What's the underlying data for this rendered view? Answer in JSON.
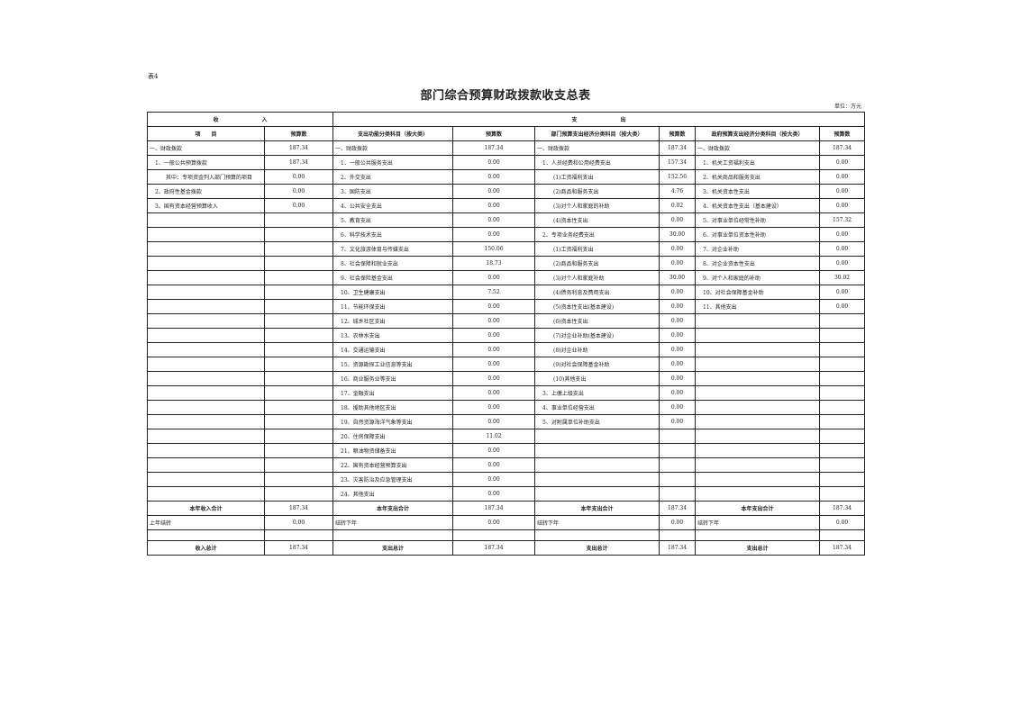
{
  "tag": "表4",
  "title": "部门综合预算财政拨款收支总表",
  "unit": "单位：万元",
  "header": {
    "income": "收　　　　　　　　入",
    "expense": "支　　　　　　　　出",
    "cols": [
      "项　　目",
      "预算数",
      "支出功能分类科目（按大类）",
      "预算数",
      "部门预算支出经济分类科目（按大类）",
      "预算数",
      "政府预算支出经济分类科目（按大类）",
      "预算数"
    ]
  },
  "rows": [
    [
      "一、财政拨款",
      "187.34",
      "一、财政拨款",
      "187.34",
      "一、财政拨款",
      "187.34",
      "一、财政拨款",
      "187.34"
    ],
    [
      "1、一般公共预算拨款",
      "187.34",
      "1、一般公共服务支出",
      "0.00",
      "1、人员经费和公用经费支出",
      "157.34",
      "1、机关工资福利支出",
      "0.00"
    ],
    [
      "其中：专项资金列入部门预算的项目",
      "0.00",
      "2、外交支出",
      "0.00",
      "(1)工资福利支出",
      "152.56",
      "2、机关商品和服务支出",
      "0.00"
    ],
    [
      "2、政府性基金拨款",
      "0.00",
      "3、国防支出",
      "0.00",
      "(2)商品和服务支出",
      "4.76",
      "3、机关资本性支出",
      "0.00"
    ],
    [
      "3、国有资本经营预算收入",
      "0.00",
      "4、公共安全支出",
      "0.00",
      "(3)对个人和家庭的补助",
      "0.02",
      "4、机关资本性支出（基本建设）",
      "0.00"
    ],
    [
      "",
      "",
      "5、教育支出",
      "0.00",
      "(4)资本性支出",
      "0.00",
      "5、对事业单位经常性补助",
      "157.32"
    ],
    [
      "",
      "",
      "6、科学技术支出",
      "0.00",
      "2、专项业务经费支出",
      "30.00",
      "6、对事业单位资本性补助",
      "0.00"
    ],
    [
      "",
      "",
      "7、文化旅游体育与传媒支出",
      "150.06",
      "(1)工资福利支出",
      "0.00",
      "7、对企业补助",
      "0.00"
    ],
    [
      "",
      "",
      "8、社会保障和就业支出",
      "18.73",
      "(2)商品和服务支出",
      "0.00",
      "8、对企业资本性支出",
      "0.00"
    ],
    [
      "",
      "",
      "9、社会保险基金支出",
      "0.00",
      "(3)对个人和家庭补助",
      "30.00",
      "9、对个人和家庭的补助",
      "30.02"
    ],
    [
      "",
      "",
      "10、卫生健康支出",
      "7.52",
      "(4)债务利息及费用支出",
      "0.00",
      "10、对社会保障基金补助",
      "0.00"
    ],
    [
      "",
      "",
      "11、节能环保支出",
      "0.00",
      "(5)资本性支出(基本建设)",
      "0.00",
      "11、其他支出",
      "0.00"
    ],
    [
      "",
      "",
      "12、城乡社区支出",
      "0.00",
      "(6)资本性支出",
      "0.00",
      "",
      ""
    ],
    [
      "",
      "",
      "13、农林水支出",
      "0.00",
      "(7)对企业补助(基本建设)",
      "0.00",
      "",
      ""
    ],
    [
      "",
      "",
      "14、交通运输支出",
      "0.00",
      "(8)对企业补助",
      "0.00",
      "",
      ""
    ],
    [
      "",
      "",
      "15、资源勘探工业信息等支出",
      "0.00",
      "(9)对社会保障基金补助",
      "0.00",
      "",
      ""
    ],
    [
      "",
      "",
      "16、商业服务业等支出",
      "0.00",
      "(10)其他支出",
      "0.00",
      "",
      ""
    ],
    [
      "",
      "",
      "17、金融支出",
      "0.00",
      "3、上缴上级支出",
      "0.00",
      "",
      ""
    ],
    [
      "",
      "",
      "18、援助其他地区支出",
      "0.00",
      "4、事业单位经营支出",
      "0.00",
      "",
      ""
    ],
    [
      "",
      "",
      "19、自然资源海洋气象等支出",
      "0.00",
      "5、对附属单位补助支出",
      "0.00",
      "",
      ""
    ],
    [
      "",
      "",
      "20、住房保障支出",
      "11.02",
      "",
      "",
      "",
      ""
    ],
    [
      "",
      "",
      "21、粮油物资储备支出",
      "0.00",
      "",
      "",
      "",
      ""
    ],
    [
      "",
      "",
      "22、国有资本经营预算支出",
      "0.00",
      "",
      "",
      "",
      ""
    ],
    [
      "",
      "",
      "23、灾害防治及应急管理支出",
      "0.00",
      "",
      "",
      "",
      ""
    ],
    [
      "",
      "",
      "24、其他支出",
      "0.00",
      "",
      "",
      "",
      ""
    ]
  ],
  "subtotal": [
    "本年收入合计",
    "187.34",
    "本年支出合计",
    "187.34",
    "本年支出合计",
    "187.34",
    "本年支出合计",
    "187.34"
  ],
  "carry": [
    "上年结转",
    "0.00",
    "结转下年",
    "0.00",
    "结转下年",
    "0.00",
    "结转下年",
    "0.00"
  ],
  "total": [
    "收入总计",
    "187.34",
    "支出总计",
    "187.34",
    "支出总计",
    "187.34",
    "支出总计",
    "187.34"
  ]
}
